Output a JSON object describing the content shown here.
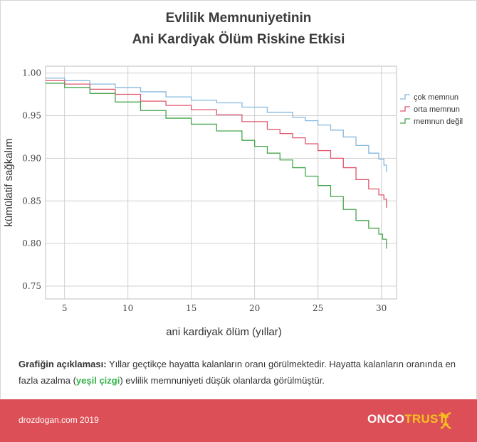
{
  "title_line1": "Evlilik Memnuniyetinin",
  "title_line2": "Ani Kardiyak Ölüm Riskine Etkisi",
  "chart_data": {
    "type": "line",
    "step": true,
    "xlabel": "ani kardiyak ölüm (yıllar)",
    "ylabel": "kümülatif sağkalım",
    "xlim": [
      3.5,
      31.2
    ],
    "ylim": [
      0.735,
      1.008
    ],
    "xticks": [
      5,
      10,
      15,
      20,
      25,
      30
    ],
    "yticks": [
      0.75,
      0.8,
      0.85,
      0.9,
      0.95,
      1.0
    ],
    "ytick_labels": [
      "0.75",
      "0.80",
      "0.85",
      "0.90",
      "0.95",
      "1.00"
    ],
    "grid": true,
    "legend_position": "right",
    "series": [
      {
        "name": "çok memnun",
        "color": "#86b8dd",
        "x": [
          3.5,
          5,
          7,
          9,
          11,
          13,
          15,
          17,
          19,
          21,
          23,
          24,
          25,
          26,
          27,
          28,
          29,
          29.8,
          30.2,
          30.4
        ],
        "y": [
          0.994,
          0.991,
          0.987,
          0.983,
          0.978,
          0.972,
          0.968,
          0.965,
          0.96,
          0.954,
          0.948,
          0.944,
          0.939,
          0.933,
          0.925,
          0.915,
          0.906,
          0.899,
          0.892,
          0.884
        ]
      },
      {
        "name": "orta memnun",
        "color": "#e0566d",
        "x": [
          3.5,
          5,
          7,
          9,
          11,
          13,
          15,
          17,
          19,
          21,
          22,
          23,
          24,
          25,
          26,
          27,
          28,
          29,
          29.8,
          30.2,
          30.4
        ],
        "y": [
          0.991,
          0.987,
          0.981,
          0.975,
          0.967,
          0.962,
          0.957,
          0.951,
          0.943,
          0.934,
          0.929,
          0.924,
          0.917,
          0.909,
          0.9,
          0.889,
          0.875,
          0.864,
          0.857,
          0.852,
          0.842
        ]
      },
      {
        "name": "memnun değil",
        "color": "#47a54e",
        "x": [
          3.5,
          5,
          7,
          9,
          11,
          13,
          15,
          17,
          19,
          20,
          21,
          22,
          23,
          24,
          25,
          26,
          27,
          28,
          29,
          29.8,
          30.1,
          30.4
        ],
        "y": [
          0.988,
          0.983,
          0.976,
          0.966,
          0.956,
          0.947,
          0.94,
          0.932,
          0.921,
          0.914,
          0.906,
          0.898,
          0.889,
          0.879,
          0.868,
          0.855,
          0.84,
          0.827,
          0.818,
          0.811,
          0.805,
          0.794
        ]
      }
    ]
  },
  "description": {
    "heading": "Grafiğin açıklaması:",
    "text1": "Yıllar geçtikçe hayatta kalanların oranı görülmektedir. Hayatta kalanların oranında en fazla azalma (",
    "highlight": "yeşil çizgi",
    "text2": ") evlilik memnuniyeti düşük olanlarda görülmüştür."
  },
  "footer": {
    "site": "drozdogan.com 2019",
    "logo_part1": "ONCO",
    "logo_part2": "TRUST",
    "bg_color": "#dc4f57"
  }
}
